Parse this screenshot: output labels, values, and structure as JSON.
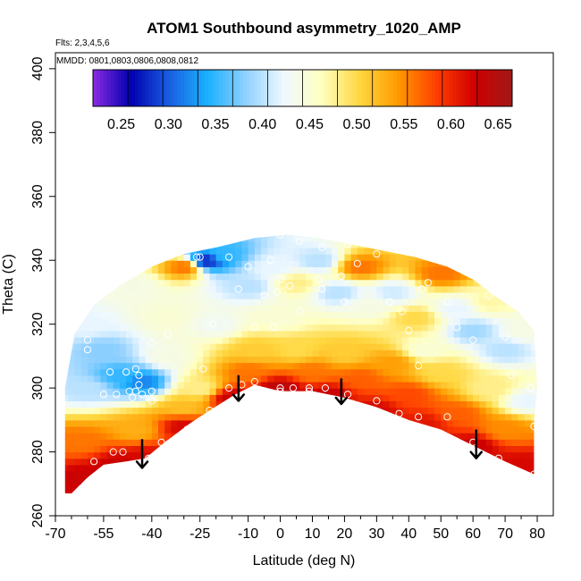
{
  "chart_data": {
    "type": "heatmap",
    "title": "ATOM1 Southbound asymmetry_1020_AMP",
    "flights_label": "Flts: 2,3,4,5,6",
    "dates_label": "MMDD: 0801,0803,0806,0808,0812",
    "xlabel": "Latitude (deg N)",
    "ylabel": "Theta (C)",
    "xlim": [
      -70,
      85
    ],
    "ylim": [
      260,
      405
    ],
    "x_major_ticks": [
      -70,
      -55,
      -40,
      -25,
      -10,
      0,
      10,
      20,
      30,
      40,
      50,
      60,
      70,
      80
    ],
    "x_major_labels": [
      "-70",
      "-55",
      "-40",
      "-25",
      "-10",
      "0",
      "10",
      "20",
      "30",
      "40",
      "50",
      "60",
      "70",
      "80"
    ],
    "x_minor_ticks": [
      -65,
      -60,
      -50,
      -45,
      -35,
      -30,
      -20,
      -15,
      -5,
      5,
      15,
      25,
      35,
      45,
      55,
      65,
      75
    ],
    "y_ticks": [
      260,
      280,
      300,
      320,
      340,
      360,
      380,
      400
    ],
    "y_tick_labels": [
      "260",
      "280",
      "300",
      "320",
      "340",
      "360",
      "380",
      "400"
    ],
    "colorbar": {
      "min": 0.22,
      "max": 0.665,
      "ticks": [
        0.25,
        0.3,
        0.35,
        0.4,
        0.45,
        0.5,
        0.55,
        0.6,
        0.65
      ],
      "tick_labels": [
        "0.25",
        "0.30",
        "0.35",
        "0.40",
        "0.45",
        "0.50",
        "0.55",
        "0.60",
        "0.65"
      ],
      "colors": [
        "#8a2be2",
        "#0000b0",
        "#1a5fe0",
        "#1ab0ff",
        "#8fd0ff",
        "#eef8ff",
        "#ffffc0",
        "#ffd740",
        "#ff9a00",
        "#ff4000",
        "#d00000",
        "#a01818"
      ]
    },
    "domain_upper_boundary": [
      [
        -67,
        300
      ],
      [
        -64,
        317
      ],
      [
        -58,
        326
      ],
      [
        -50,
        332
      ],
      [
        -40,
        338
      ],
      [
        -30,
        342
      ],
      [
        -20,
        344
      ],
      [
        -8,
        347
      ],
      [
        2,
        348
      ],
      [
        12,
        347
      ],
      [
        22,
        345
      ],
      [
        32,
        343
      ],
      [
        42,
        341
      ],
      [
        52,
        338
      ],
      [
        60,
        334
      ],
      [
        68,
        328
      ],
      [
        74,
        324
      ],
      [
        79,
        318
      ],
      [
        80,
        300
      ],
      [
        79,
        290
      ]
    ],
    "domain_lower_boundary": [
      [
        -67,
        267
      ],
      [
        -65,
        267
      ],
      [
        -60,
        272
      ],
      [
        -55,
        276
      ],
      [
        -48,
        277
      ],
      [
        -42,
        278
      ],
      [
        -36,
        283
      ],
      [
        -28,
        289
      ],
      [
        -22,
        293
      ],
      [
        -14,
        298
      ],
      [
        -8,
        301
      ],
      [
        0,
        299
      ],
      [
        10,
        299
      ],
      [
        20,
        297
      ],
      [
        30,
        294
      ],
      [
        40,
        290
      ],
      [
        50,
        287
      ],
      [
        60,
        282
      ],
      [
        70,
        277
      ],
      [
        79,
        273
      ]
    ],
    "field_points": [
      {
        "lat": -60,
        "theta": 272,
        "value": 0.63
      },
      {
        "lat": -50,
        "theta": 276,
        "value": 0.63
      },
      {
        "lat": -42,
        "theta": 278,
        "value": 0.62
      },
      {
        "lat": -30,
        "theta": 288,
        "value": 0.62
      },
      {
        "lat": -15,
        "theta": 297,
        "value": 0.63
      },
      {
        "lat": 0,
        "theta": 300,
        "value": 0.64
      },
      {
        "lat": 15,
        "theta": 298,
        "value": 0.63
      },
      {
        "lat": 30,
        "theta": 293,
        "value": 0.62
      },
      {
        "lat": 45,
        "theta": 289,
        "value": 0.61
      },
      {
        "lat": 60,
        "theta": 282,
        "value": 0.63
      },
      {
        "lat": 75,
        "theta": 276,
        "value": 0.62
      },
      {
        "lat": -62,
        "theta": 283,
        "value": 0.56
      },
      {
        "lat": -45,
        "theta": 287,
        "value": 0.53
      },
      {
        "lat": -30,
        "theta": 294,
        "value": 0.52
      },
      {
        "lat": -10,
        "theta": 305,
        "value": 0.56
      },
      {
        "lat": 10,
        "theta": 305,
        "value": 0.56
      },
      {
        "lat": 25,
        "theta": 303,
        "value": 0.57
      },
      {
        "lat": 40,
        "theta": 298,
        "value": 0.58
      },
      {
        "lat": 55,
        "theta": 292,
        "value": 0.57
      },
      {
        "lat": 70,
        "theta": 287,
        "value": 0.55
      },
      {
        "lat": -8,
        "theta": 312,
        "value": 0.51
      },
      {
        "lat": 5,
        "theta": 312,
        "value": 0.5
      },
      {
        "lat": 20,
        "theta": 311,
        "value": 0.51
      },
      {
        "lat": 35,
        "theta": 308,
        "value": 0.54
      },
      {
        "lat": 50,
        "theta": 305,
        "value": 0.5
      },
      {
        "lat": 65,
        "theta": 300,
        "value": 0.48
      },
      {
        "lat": -60,
        "theta": 300,
        "value": 0.4
      },
      {
        "lat": -50,
        "theta": 304,
        "value": 0.35
      },
      {
        "lat": -43,
        "theta": 302,
        "value": 0.32
      },
      {
        "lat": -55,
        "theta": 312,
        "value": 0.38
      },
      {
        "lat": -35,
        "theta": 310,
        "value": 0.44
      },
      {
        "lat": -25,
        "theta": 300,
        "value": 0.48
      },
      {
        "lat": -20,
        "theta": 320,
        "value": 0.43
      },
      {
        "lat": -35,
        "theta": 322,
        "value": 0.45
      },
      {
        "lat": -60,
        "theta": 320,
        "value": 0.42
      },
      {
        "lat": -45,
        "theta": 332,
        "value": 0.44
      },
      {
        "lat": -30,
        "theta": 338,
        "value": 0.56
      },
      {
        "lat": -23,
        "theta": 340,
        "value": 0.28
      },
      {
        "lat": -18,
        "theta": 342,
        "value": 0.35
      },
      {
        "lat": -10,
        "theta": 332,
        "value": 0.4
      },
      {
        "lat": -2,
        "theta": 338,
        "value": 0.42
      },
      {
        "lat": 5,
        "theta": 333,
        "value": 0.48
      },
      {
        "lat": 12,
        "theta": 340,
        "value": 0.4
      },
      {
        "lat": 18,
        "theta": 330,
        "value": 0.4
      },
      {
        "lat": 25,
        "theta": 338,
        "value": 0.56
      },
      {
        "lat": 28,
        "theta": 326,
        "value": 0.44
      },
      {
        "lat": 0,
        "theta": 322,
        "value": 0.45
      },
      {
        "lat": 35,
        "theta": 330,
        "value": 0.41
      },
      {
        "lat": 42,
        "theta": 322,
        "value": 0.5
      },
      {
        "lat": 50,
        "theta": 336,
        "value": 0.56
      },
      {
        "lat": 55,
        "theta": 325,
        "value": 0.42
      },
      {
        "lat": 60,
        "theta": 318,
        "value": 0.39
      },
      {
        "lat": 65,
        "theta": 327,
        "value": 0.47
      },
      {
        "lat": 70,
        "theta": 312,
        "value": 0.4
      },
      {
        "lat": 76,
        "theta": 318,
        "value": 0.44
      },
      {
        "lat": 77,
        "theta": 296,
        "value": 0.42
      },
      {
        "lat": 45,
        "theta": 312,
        "value": 0.45
      }
    ],
    "observation_points": [
      [
        -55,
        298
      ],
      [
        -53,
        305
      ],
      [
        -51,
        298
      ],
      [
        -48,
        305
      ],
      [
        -46,
        297
      ],
      [
        -45,
        299
      ],
      [
        -44,
        304
      ],
      [
        -43,
        298
      ],
      [
        -44,
        301
      ],
      [
        -47,
        299
      ],
      [
        -40,
        296
      ],
      [
        -40,
        299
      ],
      [
        -45,
        306
      ],
      [
        -24,
        306
      ],
      [
        -21,
        320
      ],
      [
        -26,
        341
      ],
      [
        -25,
        341
      ],
      [
        -16,
        341
      ],
      [
        -12,
        349
      ],
      [
        -13,
        331
      ],
      [
        -10,
        338
      ],
      [
        -5,
        329
      ],
      [
        -3,
        340
      ],
      [
        -2,
        319
      ],
      [
        -8,
        319
      ],
      [
        -1,
        330
      ],
      [
        0,
        348
      ],
      [
        0,
        334
      ],
      [
        3,
        332
      ],
      [
        6,
        346
      ],
      [
        6,
        324
      ],
      [
        9,
        300
      ],
      [
        13,
        344
      ],
      [
        12,
        334
      ],
      [
        13,
        331
      ],
      [
        19,
        335
      ],
      [
        20,
        327
      ],
      [
        21,
        345
      ],
      [
        24,
        339
      ],
      [
        30,
        342
      ],
      [
        34,
        327
      ],
      [
        38,
        324
      ],
      [
        40,
        318
      ],
      [
        43,
        307
      ],
      [
        44,
        331
      ],
      [
        46,
        333
      ],
      [
        52,
        327
      ],
      [
        55,
        319
      ],
      [
        56,
        342
      ],
      [
        60,
        315
      ],
      [
        65,
        329
      ],
      [
        70,
        316
      ],
      [
        72,
        304
      ],
      [
        78,
        300
      ],
      [
        79,
        288
      ],
      [
        -60,
        312
      ],
      [
        -58,
        277
      ],
      [
        -52,
        280
      ],
      [
        -49,
        280
      ],
      [
        -41,
        278
      ],
      [
        -37,
        283
      ],
      [
        -29,
        287
      ],
      [
        -22,
        293
      ],
      [
        -16,
        300
      ],
      [
        -12,
        301
      ],
      [
        -8,
        302
      ],
      [
        0,
        299
      ],
      [
        0,
        300
      ],
      [
        4,
        300
      ],
      [
        9,
        299
      ],
      [
        14,
        300
      ],
      [
        21,
        298
      ],
      [
        30,
        296
      ],
      [
        37,
        292
      ],
      [
        43,
        291
      ],
      [
        52,
        291
      ],
      [
        60,
        283
      ],
      [
        68,
        278
      ],
      [
        79,
        273
      ],
      [
        -40,
        314
      ],
      [
        -35,
        317
      ],
      [
        -60,
        315
      ]
    ],
    "arrows": [
      {
        "lat": -43,
        "theta_start": 284,
        "theta_end": 275
      },
      {
        "lat": -13,
        "theta_start": 304,
        "theta_end": 296
      },
      {
        "lat": 19,
        "theta_start": 303,
        "theta_end": 295
      },
      {
        "lat": 61,
        "theta_start": 287,
        "theta_end": 278
      }
    ]
  }
}
